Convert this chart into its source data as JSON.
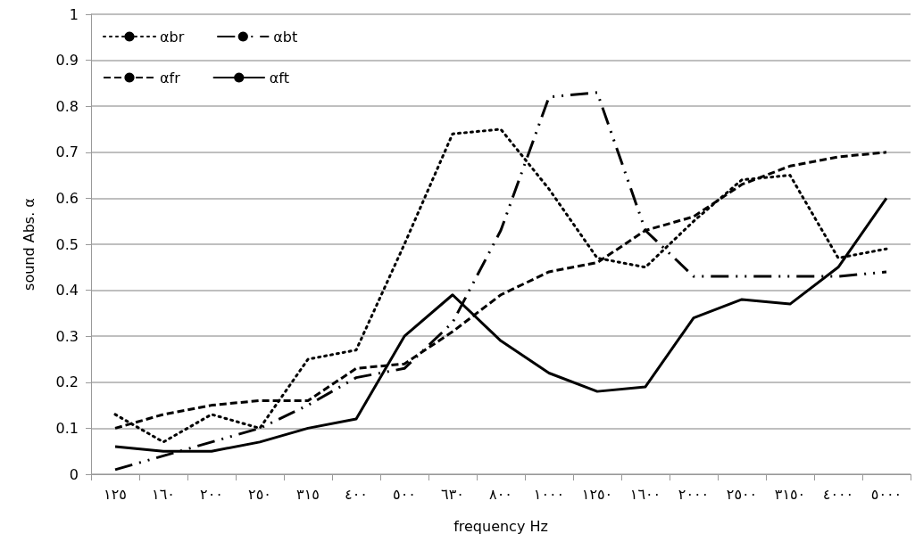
{
  "chart_data": {
    "type": "line",
    "xlabel": "frequency Hz",
    "ylabel": "sound Abs. α",
    "categories": [
      "١٢٥",
      "١٦٠",
      "٢٠٠",
      "٢٥٠",
      "٣١٥",
      "٤٠٠",
      "٥٠٠",
      "٦٣٠",
      "٨٠٠",
      "١٠٠٠",
      "١٢٥٠",
      "١٦٠٠",
      "٢٠٠٠",
      "٢٥٠٠",
      "٣١٥٠",
      "٤٠٠٠",
      "٥٠٠٠"
    ],
    "series": [
      {
        "name": "αbr",
        "color": "#000000",
        "line_style": "dotted",
        "values": [
          0.13,
          0.07,
          0.13,
          0.1,
          0.25,
          0.27,
          0.5,
          0.74,
          0.75,
          0.62,
          0.47,
          0.45,
          0.55,
          0.64,
          0.65,
          0.47,
          0.49
        ]
      },
      {
        "name": "αbt",
        "color": "#000000",
        "line_style": "dashdot",
        "values": [
          0.01,
          0.04,
          0.07,
          0.1,
          0.15,
          0.21,
          0.23,
          0.33,
          0.53,
          0.82,
          0.83,
          0.53,
          0.43,
          0.43,
          0.43,
          0.43,
          0.44
        ]
      },
      {
        "name": "αfr",
        "color": "#000000",
        "line_style": "dashed",
        "values": [
          0.1,
          0.13,
          0.15,
          0.16,
          0.16,
          0.23,
          0.24,
          0.31,
          0.39,
          0.44,
          0.46,
          0.53,
          0.56,
          0.63,
          0.67,
          0.69,
          0.7
        ]
      },
      {
        "name": "αft",
        "color": "#000000",
        "line_style": "solid",
        "values": [
          0.06,
          0.05,
          0.05,
          0.07,
          0.1,
          0.12,
          0.3,
          0.39,
          0.29,
          0.22,
          0.18,
          0.19,
          0.34,
          0.38,
          0.37,
          0.45,
          0.6
        ]
      }
    ],
    "ylim": [
      0,
      1
    ],
    "yticks": [
      0,
      0.1,
      0.2,
      0.3,
      0.4,
      0.5,
      0.6,
      0.7,
      0.8,
      0.9,
      1
    ],
    "grid": "y",
    "legend": "top left",
    "marker": "none"
  }
}
